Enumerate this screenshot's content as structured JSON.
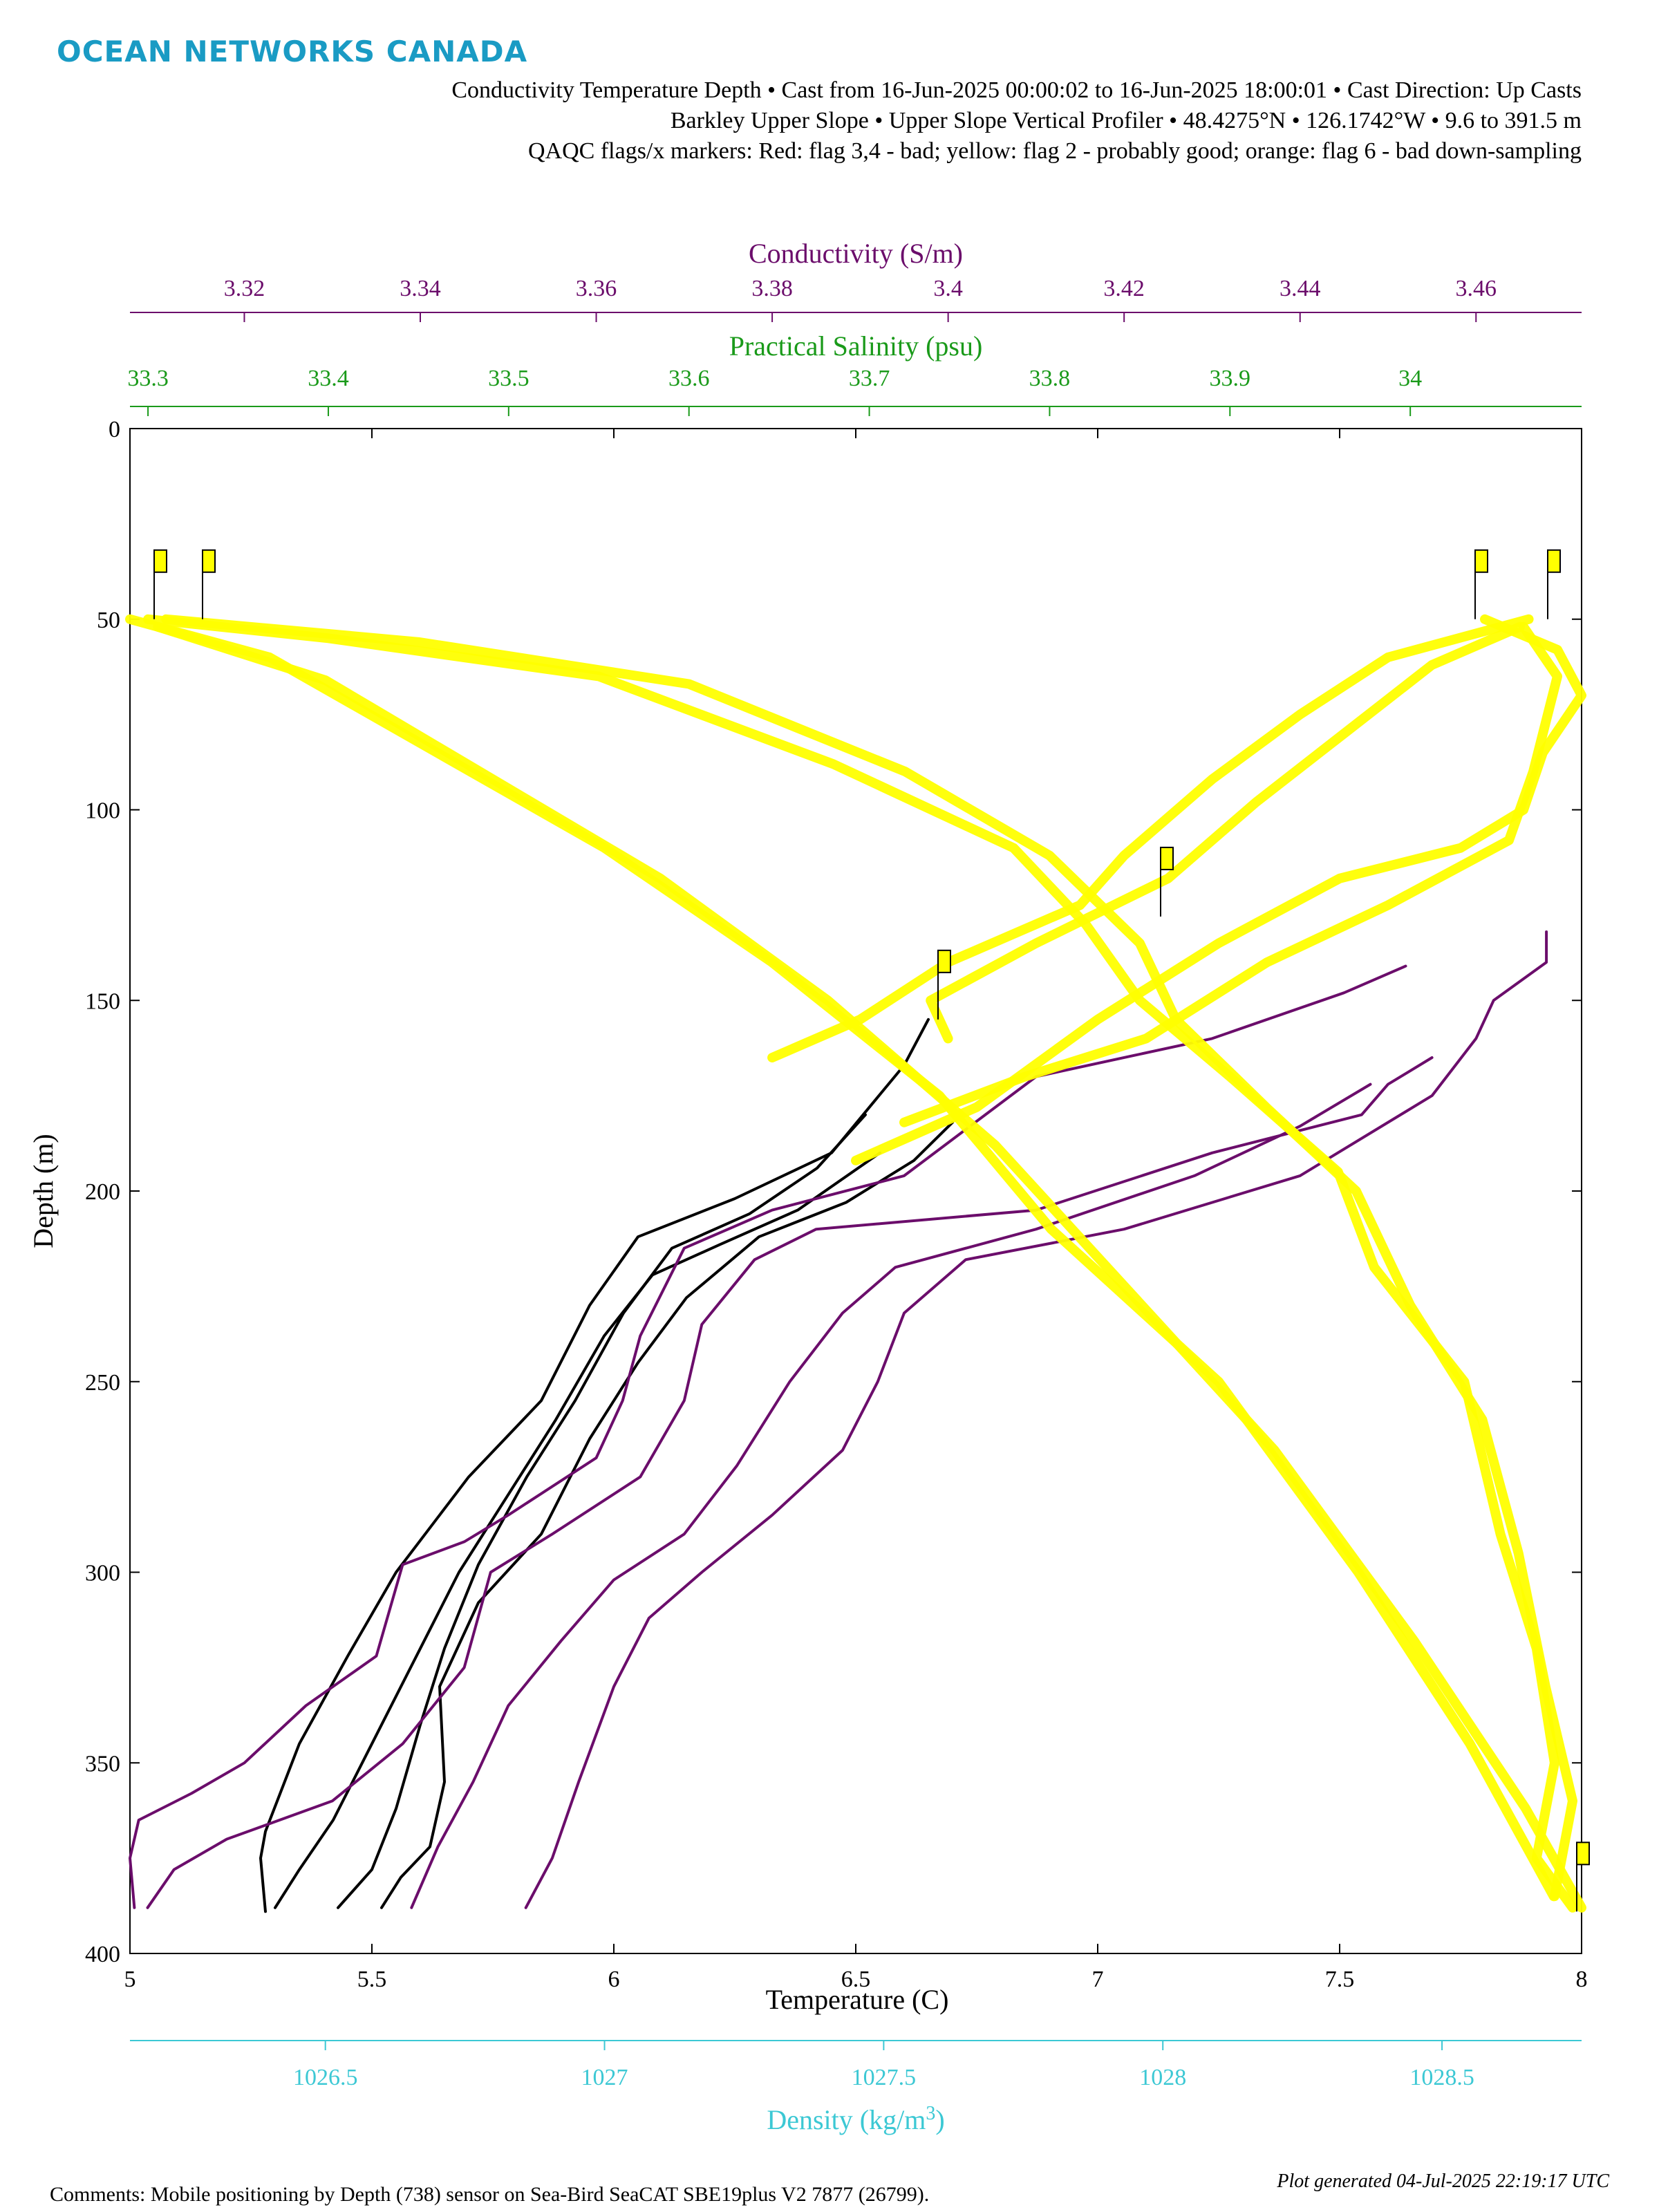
{
  "header": {
    "logo_text": "OCEAN NETWORKS CANADA",
    "line1": "Conductivity Temperature Depth • Cast from 16-Jun-2025 00:00:02 to 16-Jun-2025 18:00:01 • Cast Direction: Up Casts",
    "line2": "Barkley Upper Slope • Upper Slope Vertical Profiler • 48.4275°N • 126.1742°W • 9.6 to 391.5 m",
    "line3": "QAQC flags/x markers: Red: flag 3,4 - bad; yellow: flag 2 - probably good; orange: flag 6 - bad down-sampling"
  },
  "footer": {
    "comment": "Comments: Mobile positioning by Depth (738) sensor on Sea-Bird SeaCAT SBE19plus V2 7877 (26799).",
    "generated": "Plot generated 04-Jul-2025 22:19:17 UTC"
  },
  "colors": {
    "temperature": "#000000",
    "conductivity": "#6b0d6b",
    "salinity": "#1a9a1a",
    "density": "#3cc8d4",
    "flag2": "#ffff00"
  },
  "chart_data": {
    "type": "line",
    "grid": false,
    "y_axis": {
      "label": "Depth (m)",
      "range": [
        0,
        400
      ],
      "reversed": true,
      "ticks": [
        "0",
        "50",
        "100",
        "150",
        "200",
        "250",
        "300",
        "350",
        "400"
      ]
    },
    "axes": {
      "temperature": {
        "label": "Temperature (C)",
        "range": [
          5,
          8
        ],
        "position": "bottom",
        "ticks": [
          "5",
          "5.5",
          "6",
          "6.5",
          "7",
          "7.5",
          "8"
        ]
      },
      "density": {
        "label_main": "Density (kg/m",
        "label_sup": "3",
        "label_end": ")",
        "range": [
          1026.15,
          1028.75
        ],
        "position": "bottom-offset",
        "ticks": [
          "1026.5",
          "1027",
          "1027.5",
          "1028",
          "1028.5"
        ]
      },
      "conductivity": {
        "label": "Conductivity (S/m)",
        "range": [
          3.307,
          3.472
        ],
        "position": "top",
        "ticks": [
          "3.32",
          "3.34",
          "3.36",
          "3.38",
          "3.4",
          "3.42",
          "3.44",
          "3.46"
        ]
      },
      "salinity": {
        "label": "Practical Salinity (psu)",
        "range": [
          33.29,
          34.095
        ],
        "position": "top-offset",
        "ticks": [
          "33.3",
          "33.4",
          "33.5",
          "33.6",
          "33.7",
          "33.8",
          "33.9",
          "34"
        ]
      }
    },
    "series": [
      {
        "variable": "temperature",
        "color": "#000000",
        "points": [
          [
            5.28,
            389
          ],
          [
            5.27,
            375
          ],
          [
            5.28,
            368
          ],
          [
            5.35,
            345
          ],
          [
            5.45,
            322
          ],
          [
            5.55,
            300
          ],
          [
            5.7,
            275
          ],
          [
            5.85,
            255
          ],
          [
            5.95,
            230
          ],
          [
            6.05,
            212
          ],
          [
            6.25,
            202
          ],
          [
            6.45,
            190
          ],
          [
            6.6,
            167
          ],
          [
            6.65,
            155
          ]
        ]
      },
      {
        "variable": "temperature",
        "color": "#000000",
        "points": [
          [
            5.3,
            388
          ],
          [
            5.35,
            378
          ],
          [
            5.42,
            365
          ],
          [
            5.5,
            345
          ],
          [
            5.6,
            320
          ],
          [
            5.68,
            300
          ],
          [
            5.78,
            280
          ],
          [
            5.88,
            260
          ],
          [
            5.98,
            238
          ],
          [
            6.08,
            222
          ],
          [
            6.22,
            214
          ],
          [
            6.38,
            205
          ],
          [
            6.55,
            190
          ]
        ]
      },
      {
        "variable": "temperature",
        "color": "#000000",
        "points": [
          [
            5.43,
            388
          ],
          [
            5.5,
            378
          ],
          [
            5.55,
            362
          ],
          [
            5.6,
            340
          ],
          [
            5.65,
            320
          ],
          [
            5.72,
            298
          ],
          [
            5.82,
            275
          ],
          [
            5.92,
            255
          ],
          [
            6.02,
            232
          ],
          [
            6.12,
            215
          ],
          [
            6.28,
            206
          ],
          [
            6.42,
            194
          ],
          [
            6.52,
            180
          ]
        ]
      },
      {
        "variable": "temperature",
        "color": "#000000",
        "points": [
          [
            5.52,
            388
          ],
          [
            5.56,
            380
          ],
          [
            5.62,
            372
          ],
          [
            5.65,
            355
          ],
          [
            5.64,
            330
          ],
          [
            5.72,
            308
          ],
          [
            5.85,
            290
          ],
          [
            5.95,
            265
          ],
          [
            6.05,
            245
          ],
          [
            6.15,
            228
          ],
          [
            6.3,
            212
          ],
          [
            6.48,
            203
          ],
          [
            6.62,
            192
          ],
          [
            6.7,
            182
          ]
        ]
      },
      {
        "variable": "conductivity",
        "color": "#6b0d6b",
        "points": [
          [
            3.3075,
            388
          ],
          [
            3.307,
            375
          ],
          [
            3.308,
            365
          ],
          [
            3.314,
            358
          ],
          [
            3.32,
            350
          ],
          [
            3.327,
            335
          ],
          [
            3.335,
            322
          ],
          [
            3.338,
            298
          ],
          [
            3.345,
            292
          ],
          [
            3.35,
            285
          ],
          [
            3.36,
            270
          ],
          [
            3.363,
            255
          ],
          [
            3.365,
            238
          ],
          [
            3.37,
            215
          ],
          [
            3.38,
            205
          ],
          [
            3.395,
            196
          ],
          [
            3.41,
            170
          ],
          [
            3.43,
            160
          ],
          [
            3.445,
            148
          ],
          [
            3.452,
            141
          ]
        ]
      },
      {
        "variable": "conductivity",
        "color": "#6b0d6b",
        "points": [
          [
            3.309,
            388
          ],
          [
            3.312,
            378
          ],
          [
            3.318,
            370
          ],
          [
            3.33,
            360
          ],
          [
            3.338,
            345
          ],
          [
            3.345,
            325
          ],
          [
            3.348,
            300
          ],
          [
            3.355,
            290
          ],
          [
            3.365,
            275
          ],
          [
            3.37,
            255
          ],
          [
            3.372,
            235
          ],
          [
            3.378,
            218
          ],
          [
            3.385,
            210
          ],
          [
            3.41,
            205
          ],
          [
            3.43,
            190
          ],
          [
            3.447,
            180
          ],
          [
            3.45,
            172
          ],
          [
            3.455,
            165
          ]
        ]
      },
      {
        "variable": "conductivity",
        "color": "#6b0d6b",
        "points": [
          [
            3.352,
            388
          ],
          [
            3.355,
            375
          ],
          [
            3.358,
            355
          ],
          [
            3.362,
            330
          ],
          [
            3.366,
            312
          ],
          [
            3.372,
            300
          ],
          [
            3.38,
            285
          ],
          [
            3.388,
            268
          ],
          [
            3.392,
            250
          ],
          [
            3.395,
            232
          ],
          [
            3.402,
            218
          ],
          [
            3.42,
            210
          ],
          [
            3.44,
            196
          ],
          [
            3.455,
            175
          ],
          [
            3.46,
            160
          ],
          [
            3.462,
            150
          ],
          [
            3.468,
            140
          ],
          [
            3.468,
            132
          ]
        ]
      },
      {
        "variable": "conductivity",
        "color": "#6b0d6b",
        "points": [
          [
            3.339,
            388
          ],
          [
            3.342,
            372
          ],
          [
            3.346,
            355
          ],
          [
            3.35,
            335
          ],
          [
            3.356,
            318
          ],
          [
            3.362,
            302
          ],
          [
            3.37,
            290
          ],
          [
            3.376,
            272
          ],
          [
            3.382,
            250
          ],
          [
            3.388,
            232
          ],
          [
            3.394,
            220
          ],
          [
            3.41,
            210
          ],
          [
            3.428,
            196
          ],
          [
            3.44,
            183
          ],
          [
            3.448,
            172
          ]
        ]
      },
      {
        "variable": "salinity_flag2",
        "color": "#ffff00",
        "points": [
          [
            33.3,
            50
          ],
          [
            33.4,
            55
          ],
          [
            33.55,
            65
          ],
          [
            33.68,
            88
          ],
          [
            33.78,
            110
          ],
          [
            33.82,
            130
          ],
          [
            33.85,
            150
          ],
          [
            33.9,
            170
          ],
          [
            33.96,
            195
          ],
          [
            33.98,
            220
          ],
          [
            34.03,
            250
          ],
          [
            34.05,
            290
          ],
          [
            34.07,
            320
          ],
          [
            34.08,
            350
          ],
          [
            34.07,
            375
          ],
          [
            34.09,
            388
          ]
        ]
      },
      {
        "variable": "salinity_flag2",
        "color": "#ffff00",
        "points": [
          [
            33.31,
            50
          ],
          [
            33.45,
            56
          ],
          [
            33.6,
            67
          ],
          [
            33.72,
            90
          ],
          [
            33.8,
            112
          ],
          [
            33.85,
            135
          ],
          [
            33.87,
            155
          ],
          [
            33.92,
            178
          ],
          [
            33.97,
            200
          ],
          [
            34.0,
            230
          ],
          [
            34.04,
            260
          ],
          [
            34.06,
            295
          ],
          [
            34.075,
            330
          ],
          [
            34.09,
            360
          ],
          [
            34.08,
            385
          ]
        ]
      },
      {
        "variable": "density_flag2",
        "color": "#ffff00",
        "points": [
          [
            1026.15,
            50
          ],
          [
            1026.4,
            60
          ],
          [
            1026.7,
            85
          ],
          [
            1027.0,
            110
          ],
          [
            1027.3,
            140
          ],
          [
            1027.6,
            175
          ],
          [
            1027.8,
            210
          ],
          [
            1028.1,
            250
          ],
          [
            1028.35,
            300
          ],
          [
            1028.55,
            345
          ],
          [
            1028.7,
            385
          ]
        ]
      },
      {
        "variable": "density_flag2",
        "color": "#ffff00",
        "points": [
          [
            1026.2,
            52
          ],
          [
            1026.5,
            66
          ],
          [
            1026.8,
            92
          ],
          [
            1027.1,
            118
          ],
          [
            1027.4,
            150
          ],
          [
            1027.7,
            188
          ],
          [
            1027.95,
            228
          ],
          [
            1028.2,
            268
          ],
          [
            1028.45,
            318
          ],
          [
            1028.65,
            362
          ],
          [
            1028.75,
            388
          ]
        ]
      },
      {
        "variable": "temperature_flag2",
        "color": "#ffff00",
        "points": [
          [
            7.8,
            50
          ],
          [
            7.95,
            58
          ],
          [
            8.0,
            70
          ],
          [
            7.92,
            85
          ],
          [
            7.88,
            100
          ],
          [
            7.75,
            110
          ],
          [
            7.5,
            118
          ],
          [
            7.25,
            135
          ],
          [
            7.0,
            155
          ],
          [
            6.75,
            178
          ],
          [
            6.5,
            192
          ]
        ]
      },
      {
        "variable": "temperature_flag2",
        "color": "#ffff00",
        "points": [
          [
            7.88,
            52
          ],
          [
            7.95,
            65
          ],
          [
            7.9,
            90
          ],
          [
            7.85,
            108
          ],
          [
            7.6,
            125
          ],
          [
            7.35,
            140
          ],
          [
            7.1,
            160
          ],
          [
            6.85,
            170
          ],
          [
            6.6,
            182
          ]
        ]
      },
      {
        "variable": "conductivity_flag2",
        "color": "#ffff00",
        "points": [
          [
            3.466,
            50
          ],
          [
            3.45,
            60
          ],
          [
            3.44,
            75
          ],
          [
            3.43,
            92
          ],
          [
            3.42,
            112
          ],
          [
            3.415,
            125
          ],
          [
            3.4,
            140
          ],
          [
            3.39,
            155
          ],
          [
            3.38,
            165
          ]
        ]
      },
      {
        "variable": "conductivity_flag2",
        "color": "#ffff00",
        "points": [
          [
            3.465,
            52
          ],
          [
            3.455,
            62
          ],
          [
            3.445,
            80
          ],
          [
            3.435,
            98
          ],
          [
            3.425,
            118
          ],
          [
            3.41,
            135
          ],
          [
            3.398,
            150
          ],
          [
            3.4,
            160
          ]
        ]
      }
    ],
    "flag_markers": [
      {
        "axis": "temperature",
        "x": 5.05,
        "y": 50,
        "flag": "2"
      },
      {
        "axis": "temperature",
        "x": 5.15,
        "y": 50,
        "flag": "2"
      },
      {
        "axis": "temperature",
        "x": 7.78,
        "y": 50,
        "flag": "2"
      },
      {
        "axis": "temperature",
        "x": 7.93,
        "y": 50,
        "flag": "2"
      },
      {
        "axis": "temperature",
        "x": 7.13,
        "y": 128,
        "flag": "2"
      },
      {
        "axis": "temperature",
        "x": 6.67,
        "y": 155,
        "flag": "2"
      },
      {
        "axis": "temperature",
        "x": 7.99,
        "y": 389,
        "flag": "2"
      }
    ]
  }
}
